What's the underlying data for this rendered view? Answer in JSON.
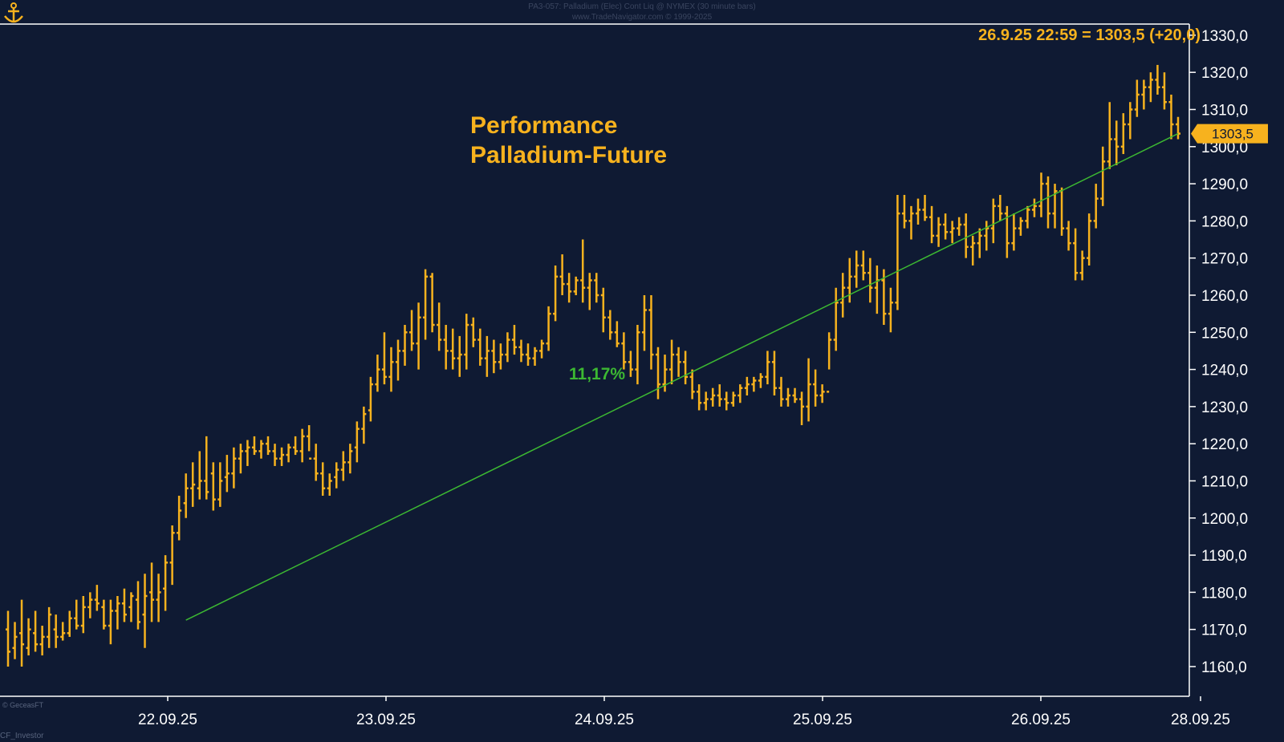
{
  "header": {
    "line1": "PA3-057:  Palladium (Elec) Cont Liq @ NYMEX  (30 minute bars)",
    "line2": "www.TradeNavigator.com © 1999-2025"
  },
  "credits": {
    "bottom_left_small": "© GeceasFT",
    "bottom_left": "CF_Investor"
  },
  "chart_data": {
    "type": "bar",
    "title": "Performance",
    "subtitle": "Palladium-Future",
    "info_label": "26.9.25 22:59 = 1303,5 (+20,0)",
    "last_price": "1303,5",
    "ylim": [
      1152,
      1333
    ],
    "yticks": [
      "1160,0",
      "1170,0",
      "1180,0",
      "1190,0",
      "1200,0",
      "1210,0",
      "1220,0",
      "1230,0",
      "1240,0",
      "1250,0",
      "1260,0",
      "1270,0",
      "1280,0",
      "1290,0",
      "1300,0",
      "1310,0",
      "1320,0",
      "1330,0"
    ],
    "x_labels": [
      "22.09.25",
      "23.09.25",
      "24.09.25",
      "25.09.25",
      "26.09.25",
      "28.09.25"
    ],
    "grid": false,
    "trendline": {
      "from": 1172.5,
      "to": 1303.5,
      "label": "11,17%"
    },
    "colors": {
      "background": "#0f1a33",
      "bars": "#f7b21e",
      "trendline": "#3cb832",
      "axis": "#ffffff",
      "title": "#f7b21e",
      "percent": "#3cb832"
    },
    "series": [
      {
        "values": [
          [
            1170,
            1160,
            1175,
            1164
          ],
          [
            1165,
            1162,
            1172,
            1168
          ],
          [
            1169,
            1160,
            1178,
            1166
          ],
          [
            1165,
            1163,
            1173,
            1170
          ],
          [
            1169,
            1164,
            1175,
            1166
          ],
          [
            1166,
            1163,
            1171,
            1168
          ],
          [
            1168,
            1165,
            1176,
            1174
          ],
          [
            1170,
            1165,
            1174,
            1168
          ],
          [
            1168,
            1167,
            1172,
            1169
          ],
          [
            1169,
            1168,
            1175,
            1173
          ],
          [
            1173,
            1170,
            1178,
            1171
          ],
          [
            1171,
            1169,
            1179,
            1176
          ],
          [
            1176,
            1173,
            1180,
            1178
          ],
          [
            1178,
            1175,
            1182,
            1177
          ],
          [
            1176,
            1170,
            1178,
            1171
          ],
          [
            1171,
            1166,
            1178,
            1175
          ],
          [
            1175,
            1170,
            1179,
            1177
          ],
          [
            1177,
            1172,
            1181,
            1174
          ],
          [
            1176,
            1172,
            1180,
            1179
          ],
          [
            1178,
            1170,
            1183,
            1172
          ],
          [
            1174,
            1165,
            1185,
            1179
          ],
          [
            1180,
            1172,
            1188,
            1178
          ],
          [
            1178,
            1172,
            1185,
            1180
          ],
          [
            1181,
            1175,
            1190,
            1188
          ],
          [
            1188,
            1182,
            1198,
            1196
          ],
          [
            1196,
            1194,
            1206,
            1202
          ],
          [
            1204,
            1200,
            1212,
            1208
          ],
          [
            1208,
            1203,
            1215,
            1209
          ],
          [
            1208,
            1205,
            1218,
            1210
          ],
          [
            1210,
            1205,
            1222,
            1207
          ],
          [
            1212,
            1202,
            1215,
            1205
          ],
          [
            1205,
            1203,
            1215,
            1210
          ],
          [
            1211,
            1207,
            1217,
            1212
          ],
          [
            1212,
            1208,
            1219,
            1216
          ],
          [
            1216,
            1212,
            1220,
            1218
          ],
          [
            1218,
            1214,
            1221,
            1219
          ],
          [
            1219,
            1217,
            1222,
            1218
          ],
          [
            1218,
            1216,
            1221,
            1220
          ],
          [
            1220,
            1217,
            1222,
            1218
          ],
          [
            1218,
            1214,
            1220,
            1216
          ],
          [
            1216,
            1214,
            1219,
            1217
          ],
          [
            1217,
            1215,
            1220,
            1219
          ],
          [
            1219,
            1217,
            1222,
            1218
          ],
          [
            1218,
            1215,
            1224,
            1222
          ],
          [
            1222,
            1218,
            1225,
            1216
          ],
          [
            1216,
            1210,
            1220,
            1212
          ],
          [
            1212,
            1206,
            1215,
            1208
          ],
          [
            1208,
            1206,
            1212,
            1210
          ],
          [
            1211,
            1208,
            1215,
            1213
          ],
          [
            1213,
            1210,
            1218,
            1215
          ],
          [
            1215,
            1212,
            1220,
            1218
          ],
          [
            1219,
            1215,
            1226,
            1224
          ],
          [
            1224,
            1220,
            1230,
            1228
          ],
          [
            1229,
            1226,
            1238,
            1236
          ],
          [
            1236,
            1234,
            1244,
            1240
          ],
          [
            1240,
            1236,
            1250,
            1238
          ],
          [
            1238,
            1234,
            1246,
            1242
          ],
          [
            1242,
            1237,
            1248,
            1245
          ],
          [
            1245,
            1241,
            1252,
            1250
          ],
          [
            1250,
            1245,
            1256,
            1247
          ],
          [
            1247,
            1240,
            1258,
            1254
          ],
          [
            1254,
            1248,
            1267,
            1265
          ],
          [
            1265,
            1250,
            1266,
            1252
          ],
          [
            1252,
            1245,
            1258,
            1248
          ],
          [
            1248,
            1240,
            1252,
            1245
          ],
          [
            1245,
            1240,
            1251,
            1243
          ],
          [
            1243,
            1238,
            1249,
            1244
          ],
          [
            1244,
            1240,
            1255,
            1252
          ],
          [
            1252,
            1246,
            1254,
            1248
          ],
          [
            1248,
            1241,
            1251,
            1243
          ],
          [
            1243,
            1238,
            1249,
            1245
          ],
          [
            1245,
            1239,
            1248,
            1242
          ],
          [
            1242,
            1240,
            1247,
            1244
          ],
          [
            1244,
            1242,
            1250,
            1248
          ],
          [
            1248,
            1244,
            1252,
            1246
          ],
          [
            1246,
            1242,
            1248,
            1244
          ],
          [
            1244,
            1241,
            1247,
            1243
          ],
          [
            1243,
            1241,
            1246,
            1245
          ],
          [
            1245,
            1243,
            1248,
            1247
          ],
          [
            1247,
            1245,
            1257,
            1255
          ],
          [
            1255,
            1253,
            1268,
            1265
          ],
          [
            1265,
            1260,
            1271,
            1263
          ],
          [
            1263,
            1258,
            1266,
            1261
          ],
          [
            1261,
            1260,
            1265,
            1264
          ],
          [
            1264,
            1258,
            1275,
            1262
          ],
          [
            1262,
            1256,
            1266,
            1264
          ],
          [
            1264,
            1258,
            1266,
            1260
          ],
          [
            1260,
            1250,
            1262,
            1254
          ],
          [
            1254,
            1248,
            1256,
            1250
          ],
          [
            1250,
            1246,
            1253,
            1247
          ],
          [
            1247,
            1240,
            1250,
            1242
          ],
          [
            1242,
            1238,
            1245,
            1240
          ],
          [
            1240,
            1236,
            1252,
            1250
          ],
          [
            1250,
            1245,
            1260,
            1256
          ],
          [
            1256,
            1240,
            1260,
            1244
          ],
          [
            1244,
            1232,
            1246,
            1236
          ],
          [
            1236,
            1234,
            1244,
            1240
          ],
          [
            1240,
            1236,
            1248,
            1244
          ],
          [
            1244,
            1238,
            1246,
            1242
          ],
          [
            1242,
            1236,
            1245,
            1238
          ],
          [
            1238,
            1232,
            1240,
            1234
          ],
          [
            1234,
            1229,
            1236,
            1231
          ],
          [
            1231,
            1229,
            1234,
            1232
          ],
          [
            1232,
            1230,
            1235,
            1233
          ],
          [
            1233,
            1230,
            1236,
            1232
          ],
          [
            1232,
            1229,
            1234,
            1231
          ],
          [
            1231,
            1230,
            1234,
            1233
          ],
          [
            1233,
            1231,
            1236,
            1235
          ],
          [
            1235,
            1233,
            1238,
            1236
          ],
          [
            1236,
            1234,
            1238,
            1237
          ],
          [
            1237,
            1235,
            1239,
            1238
          ],
          [
            1238,
            1236,
            1245,
            1242
          ],
          [
            1242,
            1233,
            1245,
            1235
          ],
          [
            1235,
            1230,
            1238,
            1232
          ],
          [
            1232,
            1230,
            1235,
            1233
          ],
          [
            1233,
            1231,
            1235,
            1232
          ],
          [
            1232,
            1225,
            1234,
            1230
          ],
          [
            1230,
            1226,
            1243,
            1236
          ],
          [
            1236,
            1230,
            1240,
            1233
          ],
          [
            1233,
            1231,
            1236,
            1234
          ],
          [
            1234,
            1240,
            1250,
            1248
          ],
          [
            1248,
            1245,
            1262,
            1258
          ],
          [
            1258,
            1254,
            1266,
            1262
          ],
          [
            1262,
            1258,
            1270,
            1265
          ],
          [
            1265,
            1262,
            1272,
            1268
          ],
          [
            1268,
            1264,
            1272,
            1266
          ],
          [
            1266,
            1258,
            1270,
            1262
          ],
          [
            1262,
            1255,
            1268,
            1264
          ],
          [
            1264,
            1252,
            1267,
            1255
          ],
          [
            1255,
            1250,
            1262,
            1258
          ],
          [
            1258,
            1256,
            1287,
            1282
          ],
          [
            1282,
            1278,
            1287,
            1280
          ],
          [
            1280,
            1275,
            1284,
            1282
          ],
          [
            1282,
            1279,
            1286,
            1283
          ],
          [
            1283,
            1280,
            1287,
            1281
          ],
          [
            1281,
            1274,
            1284,
            1276
          ],
          [
            1276,
            1273,
            1281,
            1279
          ],
          [
            1279,
            1275,
            1282,
            1277
          ],
          [
            1277,
            1274,
            1280,
            1278
          ],
          [
            1278,
            1276,
            1281,
            1279
          ],
          [
            1279,
            1270,
            1282,
            1273
          ],
          [
            1273,
            1268,
            1276,
            1274
          ],
          [
            1274,
            1270,
            1278,
            1276
          ],
          [
            1276,
            1272,
            1280,
            1278
          ],
          [
            1278,
            1274,
            1286,
            1284
          ],
          [
            1284,
            1280,
            1287,
            1282
          ],
          [
            1282,
            1270,
            1284,
            1274
          ],
          [
            1274,
            1272,
            1282,
            1278
          ],
          [
            1278,
            1276,
            1281,
            1280
          ],
          [
            1280,
            1278,
            1284,
            1283
          ],
          [
            1283,
            1281,
            1286,
            1284
          ],
          [
            1284,
            1281,
            1293,
            1290
          ],
          [
            1290,
            1278,
            1292,
            1282
          ],
          [
            1282,
            1278,
            1290,
            1288
          ],
          [
            1288,
            1276,
            1289,
            1278
          ],
          [
            1278,
            1272,
            1280,
            1274
          ],
          [
            1274,
            1264,
            1278,
            1266
          ],
          [
            1266,
            1264,
            1272,
            1270
          ],
          [
            1270,
            1268,
            1282,
            1280
          ],
          [
            1280,
            1278,
            1290,
            1286
          ],
          [
            1286,
            1284,
            1300,
            1296
          ],
          [
            1296,
            1294,
            1312,
            1302
          ],
          [
            1302,
            1295,
            1307,
            1300
          ],
          [
            1300,
            1298,
            1309,
            1306
          ],
          [
            1306,
            1302,
            1312,
            1310
          ],
          [
            1310,
            1308,
            1318,
            1314
          ],
          [
            1314,
            1310,
            1318,
            1316
          ],
          [
            1316,
            1312,
            1320,
            1318
          ],
          [
            1318,
            1314,
            1322,
            1316
          ],
          [
            1316,
            1310,
            1320,
            1312
          ],
          [
            1312,
            1302,
            1314,
            1306
          ],
          [
            1306,
            1302,
            1308,
            1303.5
          ]
        ]
      }
    ]
  }
}
